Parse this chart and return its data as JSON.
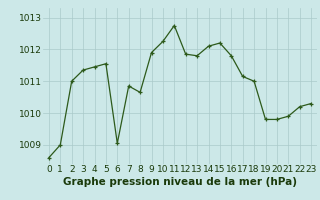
{
  "x": [
    0,
    1,
    2,
    3,
    4,
    5,
    6,
    7,
    8,
    9,
    10,
    11,
    12,
    13,
    14,
    15,
    16,
    17,
    18,
    19,
    20,
    21,
    22,
    23
  ],
  "y": [
    1008.6,
    1009.0,
    1011.0,
    1011.35,
    1011.45,
    1011.55,
    1009.05,
    1010.85,
    1010.65,
    1011.9,
    1012.25,
    1012.75,
    1011.85,
    1011.8,
    1012.1,
    1012.2,
    1011.8,
    1011.15,
    1011.0,
    1009.8,
    1009.8,
    1009.9,
    1010.2,
    1010.3
  ],
  "xlabel": "Graphe pression niveau de la mer (hPa)",
  "ylim": [
    1008.4,
    1013.3
  ],
  "yticks": [
    1009,
    1010,
    1011,
    1012,
    1013
  ],
  "line_color": "#2d5a1b",
  "marker_color": "#2d5a1b",
  "bg_color": "#cce8e8",
  "grid_color": "#aacaca",
  "xlabel_color": "#1a3a0a",
  "tick_color": "#1a3a0a",
  "xlabel_fontsize": 7.5,
  "tick_fontsize": 6.5
}
